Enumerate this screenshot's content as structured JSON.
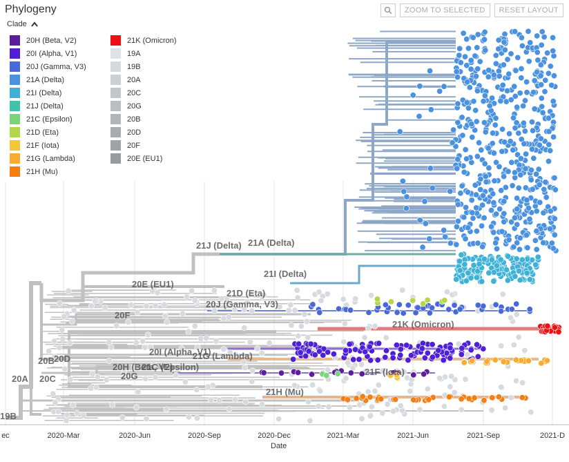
{
  "panel": {
    "title": "Phylogeny"
  },
  "toolbar": {
    "zoom_icon": "magnifier-icon",
    "zoom_selected_label": "ZOOM TO SELECTED",
    "reset_layout_label": "RESET LAYOUT"
  },
  "legend": {
    "title": "Clade",
    "toggle_icon": "chevron-up-icon",
    "left": [
      {
        "label": "20H (Beta, V2)",
        "color": "#5e1d9d"
      },
      {
        "label": "20I (Alpha, V1)",
        "color": "#4d1fd6"
      },
      {
        "label": "20J (Gamma, V3)",
        "color": "#4969d8"
      },
      {
        "label": "21A (Delta)",
        "color": "#4a91e0"
      },
      {
        "label": "21I (Delta)",
        "color": "#3eb2d6"
      },
      {
        "label": "21J (Delta)",
        "color": "#42c1ab"
      },
      {
        "label": "21C (Epsilon)",
        "color": "#7bd37c"
      },
      {
        "label": "21D (Eta)",
        "color": "#b5d54b"
      },
      {
        "label": "21F (Iota)",
        "color": "#f5c63a"
      },
      {
        "label": "21G (Lambda)",
        "color": "#f8ab2e"
      },
      {
        "label": "21H (Mu)",
        "color": "#f57e12"
      }
    ],
    "right": [
      {
        "label": "21K (Omicron)",
        "color": "#ee1111"
      },
      {
        "label": "19A",
        "color": "#dfe2e5"
      },
      {
        "label": "19B",
        "color": "#d6d9dc"
      },
      {
        "label": "20A",
        "color": "#ccd0d3"
      },
      {
        "label": "20C",
        "color": "#c3c7ca"
      },
      {
        "label": "20G",
        "color": "#babec2"
      },
      {
        "label": "20B",
        "color": "#b1b5b9"
      },
      {
        "label": "20D",
        "color": "#a8acb1"
      },
      {
        "label": "20F",
        "color": "#9fa3a8"
      },
      {
        "label": "20E (EU1)",
        "color": "#979ba0"
      }
    ]
  },
  "axis": {
    "title": "Date",
    "ticks": [
      "ec",
      "2020-Mar",
      "2020-Jun",
      "2020-Sep",
      "2020-Dec",
      "2021-Mar",
      "2021-Jun",
      "2021-Sep",
      "2021-D"
    ]
  },
  "clade_labels": [
    "21J (Delta)",
    "21A (Delta)",
    "21I (Delta)",
    "20E (EU1)",
    "21D (Eta)",
    "20J (Gamma, V3)",
    "20F",
    "21K (Omicron)",
    "20I (Alpha, V1)",
    "21G (Lambda)",
    "20B",
    "20D",
    "20H (Beta, V2)",
    "21C (Epsilon)",
    "20C",
    "20G",
    "20A",
    "21F (Iota)",
    "21H (Mu)",
    "19B"
  ]
}
